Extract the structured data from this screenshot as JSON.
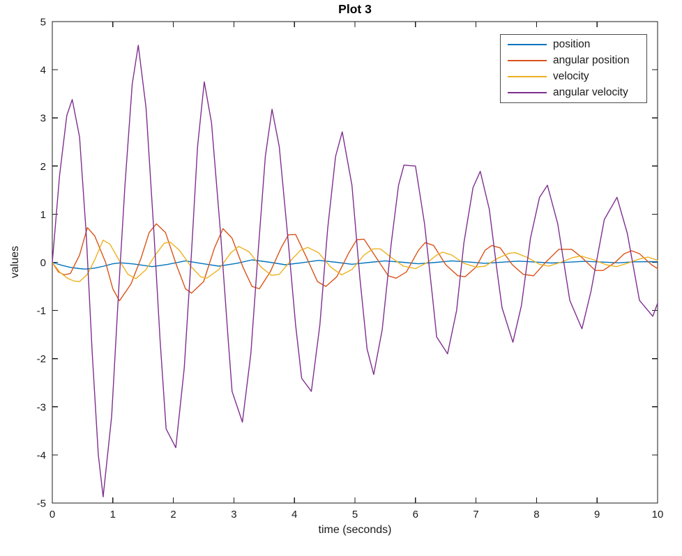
{
  "figure": {
    "title": "Plot 3"
  },
  "chart_data": {
    "type": "line",
    "title": "Plot 3",
    "xlabel": "time (seconds)",
    "ylabel": "values",
    "xlim": [
      0,
      10
    ],
    "ylim": [
      -5,
      5
    ],
    "xticks": [
      0,
      1,
      2,
      3,
      4,
      5,
      6,
      7,
      8,
      9,
      10
    ],
    "yticks": [
      -5,
      -4,
      -3,
      -2,
      -1,
      0,
      1,
      2,
      3,
      4,
      5
    ],
    "grid": false,
    "axis_color": "#1a1a1a",
    "legend": {
      "position": "northeast",
      "border_color": "#4a4a4a"
    },
    "series": [
      {
        "name": "position",
        "color": "#0072BD",
        "points": [
          [
            0,
            0
          ],
          [
            0.15,
            -0.06
          ],
          [
            0.3,
            -0.105
          ],
          [
            0.45,
            -0.13
          ],
          [
            0.55,
            -0.14
          ],
          [
            0.7,
            -0.12
          ],
          [
            0.85,
            -0.08
          ],
          [
            1.0,
            -0.03
          ],
          [
            1.13,
            -0.01
          ],
          [
            1.35,
            -0.035
          ],
          [
            1.65,
            -0.09
          ],
          [
            1.9,
            -0.045
          ],
          [
            2.2,
            0.03
          ],
          [
            2.45,
            -0.02
          ],
          [
            2.75,
            -0.08
          ],
          [
            3.05,
            -0.02
          ],
          [
            3.3,
            0.05
          ],
          [
            3.6,
            0.0
          ],
          [
            3.85,
            -0.05
          ],
          [
            4.15,
            -0.005
          ],
          [
            4.4,
            0.04
          ],
          [
            4.7,
            0.0
          ],
          [
            4.95,
            -0.04
          ],
          [
            5.25,
            0.0
          ],
          [
            5.5,
            0.03
          ],
          [
            5.8,
            0.0
          ],
          [
            6.05,
            -0.03
          ],
          [
            6.35,
            0.0
          ],
          [
            6.6,
            0.03
          ],
          [
            6.9,
            0.005
          ],
          [
            7.15,
            -0.02
          ],
          [
            7.45,
            0.005
          ],
          [
            7.7,
            0.025
          ],
          [
            8.0,
            0.005
          ],
          [
            8.25,
            -0.015
          ],
          [
            8.55,
            0.005
          ],
          [
            8.8,
            0.02
          ],
          [
            9.1,
            0.005
          ],
          [
            9.35,
            -0.01
          ],
          [
            9.6,
            0.01
          ],
          [
            9.9,
            0.015
          ],
          [
            10,
            0.01
          ]
        ]
      },
      {
        "name": "angular position",
        "color": "#D95319",
        "points": [
          [
            0,
            0
          ],
          [
            0.1,
            -0.2
          ],
          [
            0.2,
            -0.26
          ],
          [
            0.3,
            -0.23
          ],
          [
            0.45,
            0.15
          ],
          [
            0.58,
            0.72
          ],
          [
            0.7,
            0.55
          ],
          [
            0.88,
            0
          ],
          [
            1.0,
            -0.55
          ],
          [
            1.11,
            -0.8
          ],
          [
            1.3,
            -0.45
          ],
          [
            1.47,
            0.1
          ],
          [
            1.6,
            0.62
          ],
          [
            1.72,
            0.8
          ],
          [
            1.87,
            0.62
          ],
          [
            2.05,
            -0.05
          ],
          [
            2.2,
            -0.55
          ],
          [
            2.3,
            -0.64
          ],
          [
            2.5,
            -0.4
          ],
          [
            2.68,
            0.3
          ],
          [
            2.82,
            0.7
          ],
          [
            2.97,
            0.5
          ],
          [
            3.15,
            -0.1
          ],
          [
            3.3,
            -0.5
          ],
          [
            3.42,
            -0.55
          ],
          [
            3.6,
            -0.2
          ],
          [
            3.78,
            0.3
          ],
          [
            3.9,
            0.57
          ],
          [
            4.02,
            0.58
          ],
          [
            4.2,
            0.1
          ],
          [
            4.38,
            -0.4
          ],
          [
            4.52,
            -0.5
          ],
          [
            4.7,
            -0.3
          ],
          [
            4.9,
            0.2
          ],
          [
            5.03,
            0.47
          ],
          [
            5.15,
            0.48
          ],
          [
            5.35,
            0.1
          ],
          [
            5.55,
            -0.28
          ],
          [
            5.68,
            -0.33
          ],
          [
            5.85,
            -0.2
          ],
          [
            6.05,
            0.25
          ],
          [
            6.16,
            0.41
          ],
          [
            6.3,
            0.35
          ],
          [
            6.5,
            -0.05
          ],
          [
            6.7,
            -0.28
          ],
          [
            6.82,
            -0.3
          ],
          [
            7.0,
            -0.1
          ],
          [
            7.15,
            0.25
          ],
          [
            7.26,
            0.35
          ],
          [
            7.4,
            0.3
          ],
          [
            7.6,
            -0.05
          ],
          [
            7.78,
            -0.25
          ],
          [
            7.95,
            -0.28
          ],
          [
            8.15,
            0
          ],
          [
            8.37,
            0.27
          ],
          [
            8.58,
            0.27
          ],
          [
            8.75,
            0.1
          ],
          [
            8.97,
            -0.17
          ],
          [
            9.1,
            -0.17
          ],
          [
            9.3,
            0
          ],
          [
            9.45,
            0.18
          ],
          [
            9.57,
            0.24
          ],
          [
            9.7,
            0.18
          ],
          [
            9.9,
            -0.05
          ],
          [
            10,
            -0.13
          ]
        ]
      },
      {
        "name": "velocity",
        "color": "#EDB120",
        "points": [
          [
            0,
            0
          ],
          [
            0.12,
            -0.2
          ],
          [
            0.25,
            -0.33
          ],
          [
            0.36,
            -0.39
          ],
          [
            0.45,
            -0.4
          ],
          [
            0.58,
            -0.25
          ],
          [
            0.7,
            0.05
          ],
          [
            0.84,
            0.46
          ],
          [
            0.95,
            0.38
          ],
          [
            1.1,
            0.05
          ],
          [
            1.25,
            -0.25
          ],
          [
            1.38,
            -0.34
          ],
          [
            1.55,
            -0.15
          ],
          [
            1.7,
            0.15
          ],
          [
            1.85,
            0.4
          ],
          [
            1.95,
            0.42
          ],
          [
            2.1,
            0.25
          ],
          [
            2.3,
            -0.1
          ],
          [
            2.45,
            -0.3
          ],
          [
            2.55,
            -0.33
          ],
          [
            2.75,
            -0.15
          ],
          [
            2.95,
            0.2
          ],
          [
            3.08,
            0.33
          ],
          [
            3.25,
            0.22
          ],
          [
            3.45,
            -0.1
          ],
          [
            3.62,
            -0.27
          ],
          [
            3.75,
            -0.25
          ],
          [
            3.95,
            0.05
          ],
          [
            4.1,
            0.25
          ],
          [
            4.22,
            0.31
          ],
          [
            4.4,
            0.2
          ],
          [
            4.6,
            -0.1
          ],
          [
            4.78,
            -0.26
          ],
          [
            4.95,
            -0.15
          ],
          [
            5.15,
            0.15
          ],
          [
            5.3,
            0.28
          ],
          [
            5.42,
            0.28
          ],
          [
            5.6,
            0.1
          ],
          [
            5.8,
            -0.08
          ],
          [
            6.0,
            -0.13
          ],
          [
            6.2,
            0.0
          ],
          [
            6.35,
            0.15
          ],
          [
            6.45,
            0.21
          ],
          [
            6.6,
            0.15
          ],
          [
            6.8,
            -0.02
          ],
          [
            7.0,
            -0.1
          ],
          [
            7.15,
            -0.08
          ],
          [
            7.35,
            0.08
          ],
          [
            7.55,
            0.19
          ],
          [
            7.65,
            0.2
          ],
          [
            7.85,
            0.1
          ],
          [
            8.05,
            -0.04
          ],
          [
            8.2,
            -0.08
          ],
          [
            8.4,
            0.0
          ],
          [
            8.6,
            0.1
          ],
          [
            8.74,
            0.13
          ],
          [
            8.95,
            0.05
          ],
          [
            9.15,
            -0.05
          ],
          [
            9.32,
            -0.09
          ],
          [
            9.5,
            -0.02
          ],
          [
            9.7,
            0.07
          ],
          [
            9.84,
            0.11
          ],
          [
            10,
            0.04
          ]
        ]
      },
      {
        "name": "angular velocity",
        "color": "#7E2F8E",
        "points": [
          [
            0,
            0
          ],
          [
            0.12,
            1.8
          ],
          [
            0.24,
            3.05
          ],
          [
            0.33,
            3.38
          ],
          [
            0.45,
            2.6
          ],
          [
            0.56,
            0.6
          ],
          [
            0.66,
            -1.9
          ],
          [
            0.76,
            -4.0
          ],
          [
            0.84,
            -4.87
          ],
          [
            0.98,
            -3.2
          ],
          [
            1.1,
            -0.5
          ],
          [
            1.2,
            1.6
          ],
          [
            1.32,
            3.7
          ],
          [
            1.42,
            4.51
          ],
          [
            1.55,
            3.2
          ],
          [
            1.68,
            0.6
          ],
          [
            1.78,
            -1.6
          ],
          [
            1.88,
            -3.46
          ],
          [
            2.04,
            -3.85
          ],
          [
            2.18,
            -2.2
          ],
          [
            2.3,
            0.2
          ],
          [
            2.4,
            2.4
          ],
          [
            2.51,
            3.75
          ],
          [
            2.63,
            2.9
          ],
          [
            2.78,
            0.6
          ],
          [
            2.9,
            -1.5
          ],
          [
            2.97,
            -2.68
          ],
          [
            3.14,
            -3.32
          ],
          [
            3.28,
            -1.9
          ],
          [
            3.4,
            0.2
          ],
          [
            3.52,
            2.2
          ],
          [
            3.63,
            3.18
          ],
          [
            3.75,
            2.4
          ],
          [
            3.9,
            0.4
          ],
          [
            4.02,
            -1.3
          ],
          [
            4.12,
            -2.41
          ],
          [
            4.28,
            -2.68
          ],
          [
            4.42,
            -1.3
          ],
          [
            4.55,
            0.7
          ],
          [
            4.68,
            2.2
          ],
          [
            4.79,
            2.71
          ],
          [
            4.95,
            1.6
          ],
          [
            5.08,
            -0.3
          ],
          [
            5.2,
            -1.8
          ],
          [
            5.31,
            -2.33
          ],
          [
            5.45,
            -1.4
          ],
          [
            5.6,
            0.4
          ],
          [
            5.72,
            1.6
          ],
          [
            5.81,
            2.02
          ],
          [
            6.0,
            2.0
          ],
          [
            6.15,
            0.8
          ],
          [
            6.28,
            -0.7
          ],
          [
            6.35,
            -1.55
          ],
          [
            6.53,
            -1.9
          ],
          [
            6.68,
            -1.0
          ],
          [
            6.8,
            0.4
          ],
          [
            6.95,
            1.55
          ],
          [
            7.07,
            1.89
          ],
          [
            7.22,
            1.1
          ],
          [
            7.35,
            -0.2
          ],
          [
            7.43,
            -0.94
          ],
          [
            7.61,
            -1.66
          ],
          [
            7.75,
            -0.9
          ],
          [
            7.9,
            0.5
          ],
          [
            8.05,
            1.35
          ],
          [
            8.18,
            1.6
          ],
          [
            8.35,
            0.8
          ],
          [
            8.55,
            -0.79
          ],
          [
            8.75,
            -1.38
          ],
          [
            8.9,
            -0.6
          ],
          [
            9.12,
            0.89
          ],
          [
            9.33,
            1.35
          ],
          [
            9.5,
            0.6
          ],
          [
            9.7,
            -0.79
          ],
          [
            9.92,
            -1.12
          ],
          [
            10,
            -0.85
          ]
        ]
      }
    ]
  }
}
